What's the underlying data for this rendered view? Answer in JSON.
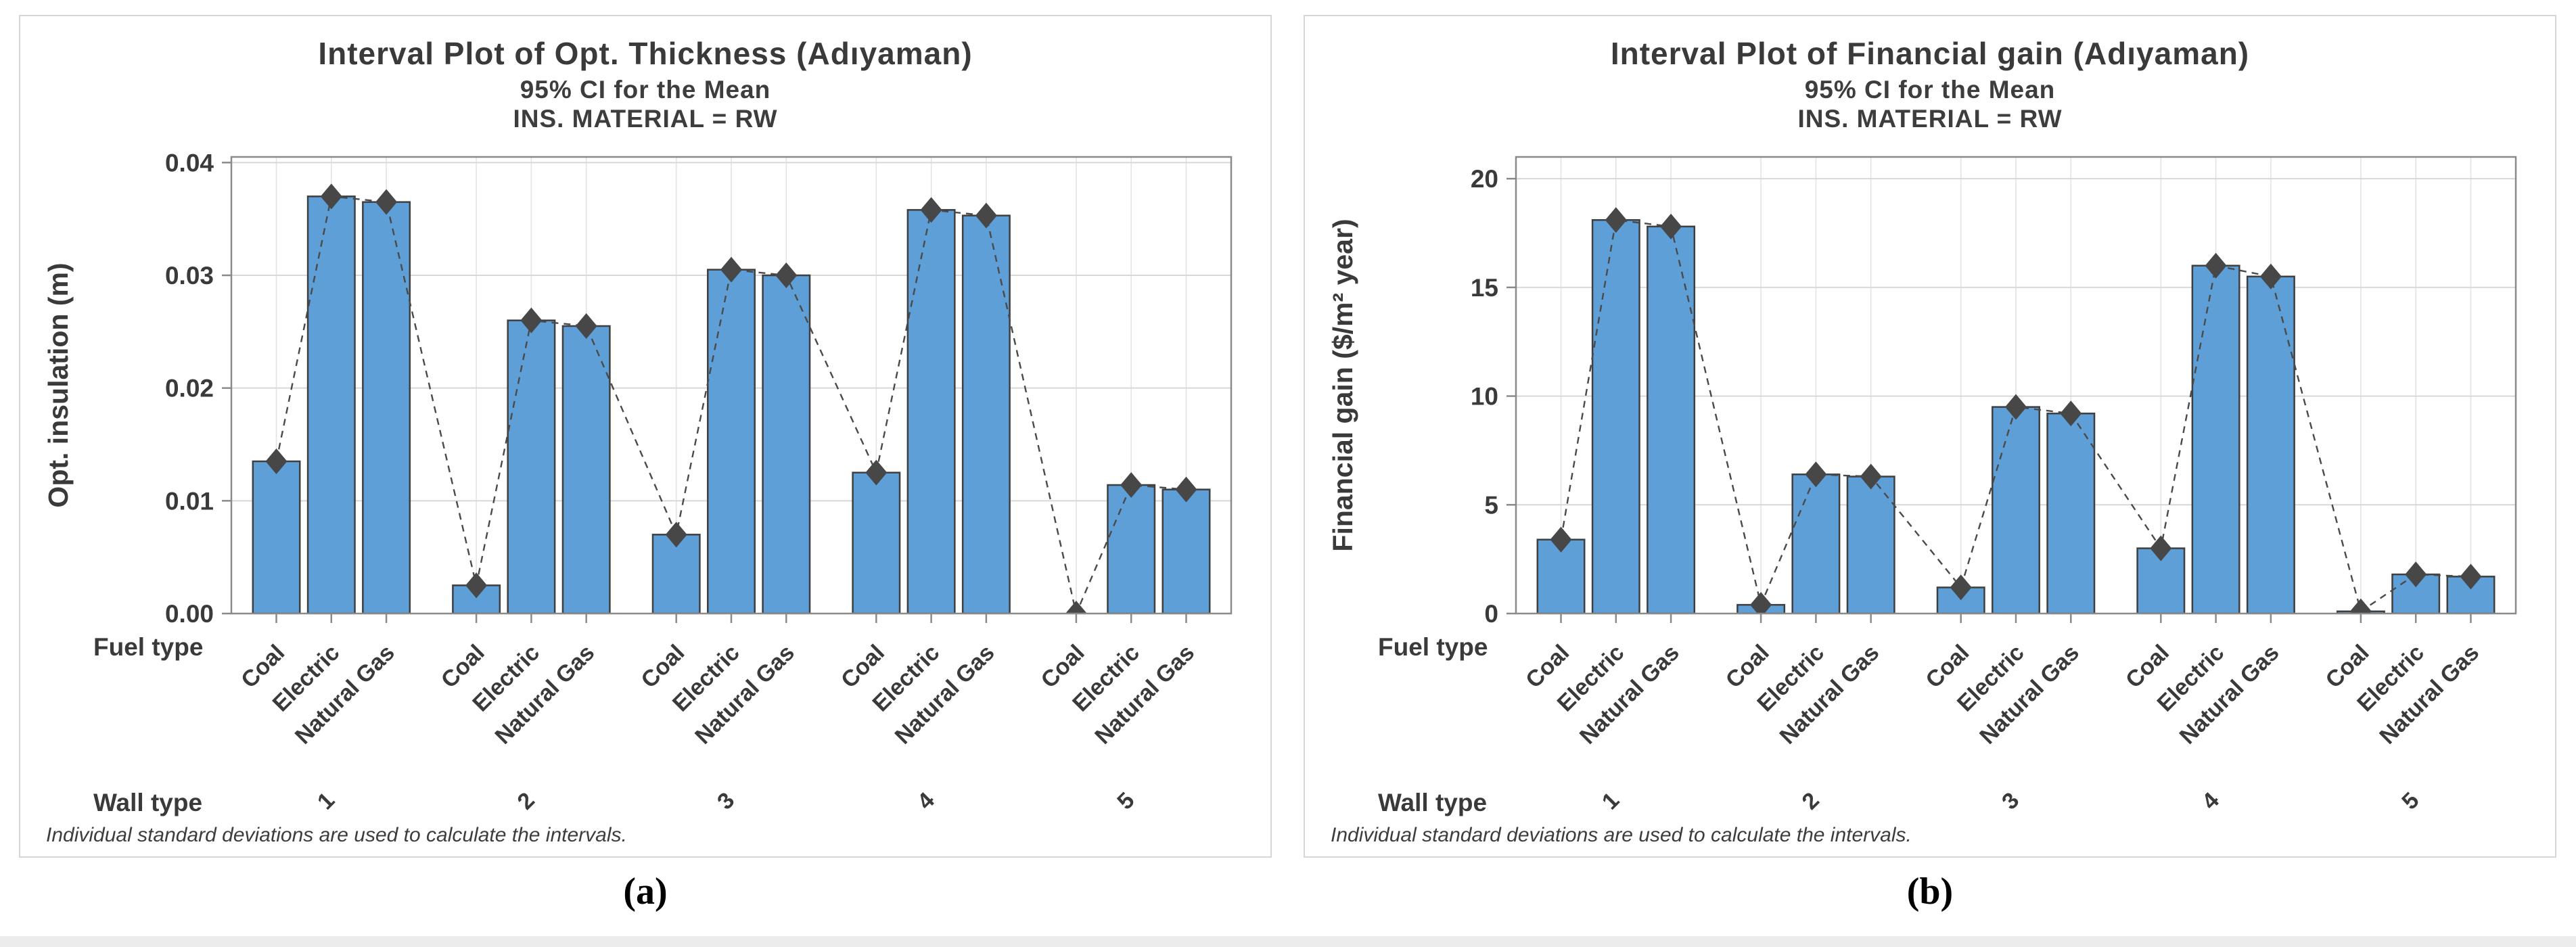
{
  "chart_data": [
    {
      "type": "bar",
      "panel": "a",
      "caption": "(a)",
      "title": "Interval Plot of Opt. Thickness (Adıyaman)",
      "subtitle": "95% CI for the Mean",
      "facet_label": "INS. MATERIAL = RW",
      "ylabel": "Opt. insulation (m)",
      "footnote": "Individual standard deviations are used to calculate the intervals.",
      "axis_row_labels": {
        "fuel": "Fuel type",
        "wall": "Wall type"
      },
      "fuel_types": [
        "Coal",
        "Electric",
        "Natural Gas"
      ],
      "wall_types": [
        "1",
        "2",
        "3",
        "4",
        "5"
      ],
      "ylim": [
        0,
        0.0405
      ],
      "yticks": [
        0,
        0.01,
        0.02,
        0.03,
        0.04
      ],
      "ytick_labels": [
        "0.00",
        "0.01",
        "0.02",
        "0.03",
        "0.04"
      ],
      "grid": true,
      "legend": "none",
      "marker": "diamond",
      "connector": "dashed",
      "series": [
        {
          "wall_type": "1",
          "values": [
            0.0135,
            0.037,
            0.0365
          ]
        },
        {
          "wall_type": "2",
          "values": [
            0.0025,
            0.026,
            0.0255
          ]
        },
        {
          "wall_type": "3",
          "values": [
            0.007,
            0.0305,
            0.03
          ]
        },
        {
          "wall_type": "4",
          "values": [
            0.0125,
            0.0358,
            0.0353
          ]
        },
        {
          "wall_type": "5",
          "values": [
            0.0,
            0.0114,
            0.011
          ]
        }
      ]
    },
    {
      "type": "bar",
      "panel": "b",
      "caption": "(b)",
      "title": "Interval Plot of Financial gain (Adıyaman)",
      "subtitle": "95% CI for the Mean",
      "facet_label": "INS. MATERIAL = RW",
      "ylabel": "Financial gain ($/m² year)",
      "footnote": "Individual standard deviations are used to calculate the intervals.",
      "axis_row_labels": {
        "fuel": "Fuel type",
        "wall": "Wall type"
      },
      "fuel_types": [
        "Coal",
        "Electric",
        "Natural Gas"
      ],
      "wall_types": [
        "1",
        "2",
        "3",
        "4",
        "5"
      ],
      "ylim": [
        0,
        21
      ],
      "yticks": [
        0,
        5,
        10,
        15,
        20
      ],
      "ytick_labels": [
        "0",
        "5",
        "10",
        "15",
        "20"
      ],
      "grid": true,
      "legend": "none",
      "marker": "diamond",
      "connector": "dashed",
      "series": [
        {
          "wall_type": "1",
          "values": [
            3.4,
            18.1,
            17.8
          ]
        },
        {
          "wall_type": "2",
          "values": [
            0.4,
            6.4,
            6.3
          ]
        },
        {
          "wall_type": "3",
          "values": [
            1.2,
            9.5,
            9.2
          ]
        },
        {
          "wall_type": "4",
          "values": [
            3.0,
            16.0,
            15.5
          ]
        },
        {
          "wall_type": "5",
          "values": [
            0.1,
            1.8,
            1.7
          ]
        }
      ]
    }
  ],
  "colors": {
    "bar_fill": "#5d9fd6",
    "bar_edge": "#3f3f3f",
    "marker": "#474747",
    "connector": "#4a4a4a",
    "grid": "#d8d8d8",
    "grid_vertical": "#e3e3e3",
    "frame": "#8a8a8a",
    "text": "#3a3a3a",
    "panel_border": "#d6d6d6"
  }
}
